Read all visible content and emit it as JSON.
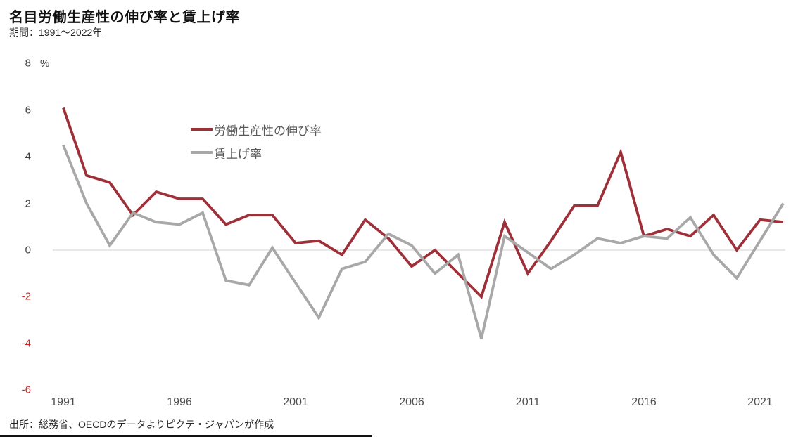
{
  "header": {
    "title": "名目労働生産性の伸び率と賃上げ率",
    "subtitle": "期間：1991～2022年"
  },
  "chart_data": {
    "type": "line",
    "unit": "%",
    "title": "名目労働生産性の伸び率と賃上げ率",
    "subtitle": "期間：1991～2022年",
    "x": [
      1991,
      1992,
      1993,
      1994,
      1995,
      1996,
      1997,
      1998,
      1999,
      2000,
      2001,
      2002,
      2003,
      2004,
      2005,
      2006,
      2007,
      2008,
      2009,
      2010,
      2011,
      2012,
      2013,
      2014,
      2015,
      2016,
      2017,
      2018,
      2019,
      2020,
      2021,
      2022
    ],
    "series": [
      {
        "name": "労働生産性の伸び率",
        "color": "#9e3039",
        "values": [
          6.1,
          3.2,
          2.9,
          1.5,
          2.5,
          2.2,
          2.2,
          1.1,
          1.5,
          1.5,
          0.3,
          0.4,
          -0.2,
          1.3,
          0.5,
          -0.7,
          0.0,
          -1.0,
          -2.0,
          1.2,
          -1.0,
          0.4,
          1.9,
          1.9,
          4.2,
          0.6,
          0.9,
          0.6,
          1.5,
          0.0,
          1.3,
          1.2
        ]
      },
      {
        "name": "賃上げ率",
        "color": "#a8a8a8",
        "values": [
          4.5,
          2.0,
          0.2,
          1.6,
          1.2,
          1.1,
          1.6,
          -1.3,
          -1.5,
          0.1,
          -1.4,
          -2.9,
          -0.8,
          -0.5,
          0.7,
          0.2,
          -1.0,
          -0.2,
          -3.8,
          0.6,
          -0.1,
          -0.8,
          -0.2,
          0.5,
          0.3,
          0.6,
          0.5,
          1.4,
          -0.2,
          -1.2,
          0.4,
          2.0
        ]
      }
    ],
    "y_ticks": [
      8,
      6,
      4,
      2,
      0,
      -2,
      -4,
      -6
    ],
    "x_ticks": [
      1991,
      1996,
      2001,
      2006,
      2011,
      2016,
      2021
    ],
    "ylim": [
      -6,
      8
    ],
    "grid": "zero-line-only",
    "zero_line_color": "#d9d9d9",
    "legend_position": "inside-top-left",
    "positive_tick_color": "#3f3f3f",
    "negative_tick_color": "#cc2626"
  },
  "footer": {
    "source": "出所：総務省、OECDのデータよりピクテ・ジャパンが作成"
  }
}
